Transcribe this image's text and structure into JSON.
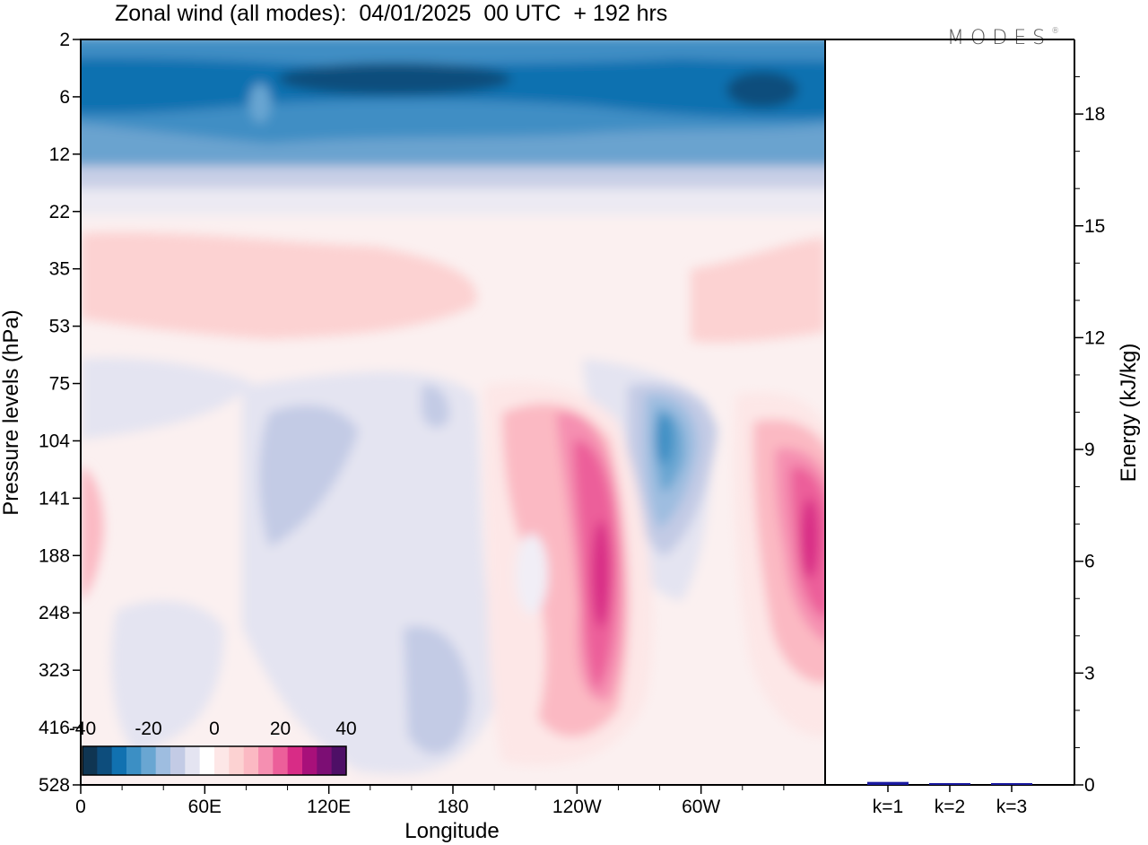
{
  "title": "Zonal wind (all modes):  04/01/2025  00 UTC  + 192 hrs",
  "logo": {
    "text": "MODES",
    "mark": "®"
  },
  "chart_data": [
    {
      "type": "heatmap",
      "xlabel": "Longitude",
      "ylabel": "Pressure levels (hPa)",
      "x_ticks": [
        "0",
        "60E",
        "120E",
        "180",
        "120W",
        "60W"
      ],
      "y_ticks": [
        "2",
        "6",
        "12",
        "22",
        "35",
        "53",
        "75",
        "104",
        "141",
        "188",
        "248",
        "323",
        "416",
        "528"
      ],
      "colorbar": {
        "labels": [
          "-40",
          "-20",
          "0",
          "20",
          "40"
        ],
        "range": [
          -40,
          40
        ],
        "colors": [
          "#0f3552",
          "#0d4d7c",
          "#1171b0",
          "#3c8fc4",
          "#69a6d2",
          "#9ebde0",
          "#c3cbe5",
          "#e4e4f1",
          "#ffffff",
          "#fde7e7",
          "#fcd2d2",
          "#fbb9c3",
          "#f58fb1",
          "#ec5f9a",
          "#d82c86",
          "#a8107a",
          "#7c0e74",
          "#4e0f66"
        ]
      },
      "zonal_wind_pattern": [
        {
          "lon": 0,
          "lat_level": "6",
          "u": -30
        },
        {
          "lon": 60,
          "lat_level": "6",
          "u": -30
        },
        {
          "lon": 180,
          "lat_level": "6",
          "u": -38
        },
        {
          "lon": 300,
          "lat_level": "6",
          "u": -32
        },
        {
          "lon": 45,
          "lat_level": "35",
          "u": 8
        },
        {
          "lon": 320,
          "lat_level": "53",
          "u": 7
        },
        {
          "lon": 235,
          "lat_level": "188",
          "u": 32
        },
        {
          "lon": 335,
          "lat_level": "188",
          "u": 33
        },
        {
          "lon": 290,
          "lat_level": "104",
          "u": -28
        },
        {
          "lon": 85,
          "lat_level": "141",
          "u": -15
        },
        {
          "lon": 170,
          "lat_level": "416",
          "u": -10
        }
      ]
    },
    {
      "type": "bar",
      "ylabel": "Energy (kJ/kg)",
      "categories": [
        "k=1",
        "k=2",
        "k=3"
      ],
      "values": [
        0.08,
        0.03,
        0.03
      ],
      "ylim": [
        0,
        20
      ],
      "y_ticks": [
        "0",
        "3",
        "6",
        "9",
        "12",
        "15",
        "18"
      ],
      "bar_color": "#1a1aa0"
    }
  ]
}
